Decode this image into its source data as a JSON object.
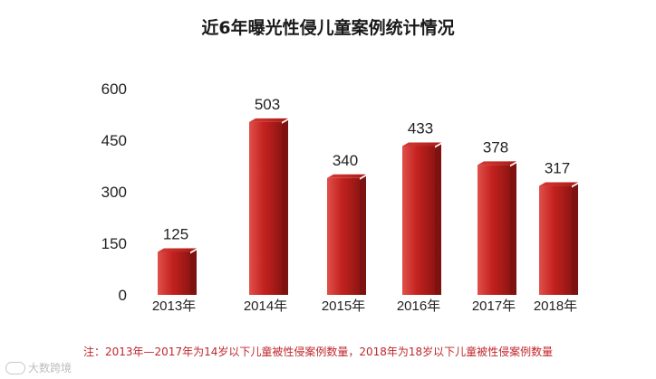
{
  "chart_data": {
    "type": "bar",
    "title": "近6年曝光性侵儿童案例统计情况",
    "categories": [
      "2013年",
      "2014年",
      "2015年",
      "2016年",
      "2017年",
      "2018年"
    ],
    "values": [
      125,
      503,
      340,
      433,
      378,
      317
    ],
    "yticks": [
      0,
      150,
      300,
      450,
      600
    ],
    "ylim": [
      0,
      600
    ],
    "grid": false,
    "bar_color": "#c3221f",
    "bar_dark": "#7e1210",
    "bar_light": "#e0504a"
  },
  "note": "注：2013年—2017年为14岁以下儿童被性侵案例数量，2018年为18岁以下儿童被性侵案例数量",
  "watermark": "大数跨境"
}
